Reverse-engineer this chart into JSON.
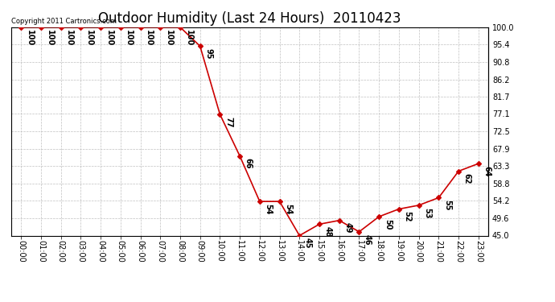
{
  "title": "Outdoor Humidity (Last 24 Hours)  20110423",
  "copyright_text": "Copyright 2011 Cartronics.com",
  "times": [
    "00:00",
    "01:00",
    "02:00",
    "03:00",
    "04:00",
    "05:00",
    "06:00",
    "07:00",
    "08:00",
    "09:00",
    "10:00",
    "11:00",
    "12:00",
    "13:00",
    "14:00",
    "15:00",
    "16:00",
    "17:00",
    "18:00",
    "19:00",
    "20:00",
    "21:00",
    "22:00",
    "23:00"
  ],
  "values": [
    100,
    100,
    100,
    100,
    100,
    100,
    100,
    100,
    100,
    95,
    77,
    66,
    54,
    54,
    45,
    48,
    49,
    46,
    50,
    52,
    53,
    55,
    62,
    64
  ],
  "line_color": "#cc0000",
  "marker_color": "#cc0000",
  "bg_color": "#ffffff",
  "grid_color": "#c0c0c0",
  "ylim_min": 45.0,
  "ylim_max": 100.0,
  "yticks": [
    100.0,
    95.4,
    90.8,
    86.2,
    81.7,
    77.1,
    72.5,
    67.9,
    63.3,
    58.8,
    54.2,
    49.6,
    45.0
  ],
  "title_fontsize": 12,
  "tick_fontsize": 7,
  "annotation_fontsize": 7,
  "copyright_fontsize": 6
}
